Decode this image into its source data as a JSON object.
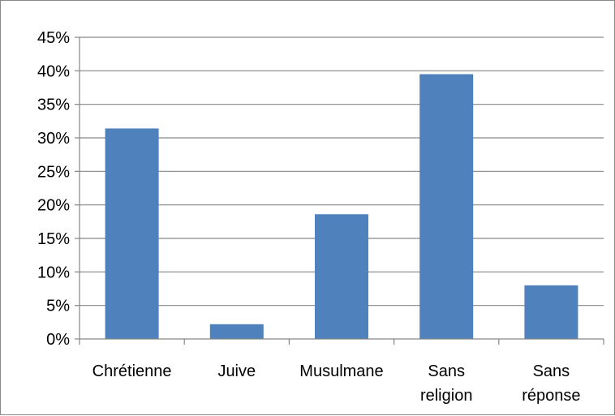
{
  "chart_data": {
    "type": "bar",
    "categories": [
      [
        "Chrétienne"
      ],
      [
        "Juive"
      ],
      [
        "Musulmane"
      ],
      [
        "Sans",
        "religion"
      ],
      [
        "Sans",
        "réponse"
      ]
    ],
    "values": [
      31.4,
      2.2,
      18.6,
      39.5,
      8.0
    ],
    "ylim": [
      0,
      45
    ],
    "y_ticks": [
      "0%",
      "5%",
      "10%",
      "15%",
      "20%",
      "25%",
      "30%",
      "35%",
      "40%",
      "45%"
    ],
    "y_tick_values": [
      0,
      5,
      10,
      15,
      20,
      25,
      30,
      35,
      40,
      45
    ],
    "grid": true,
    "legend": "none",
    "title": "",
    "xlabel": "",
    "ylabel": "",
    "colors": {
      "bar": "#4F81BD",
      "grid": "#868686",
      "axis": "#868686"
    }
  }
}
